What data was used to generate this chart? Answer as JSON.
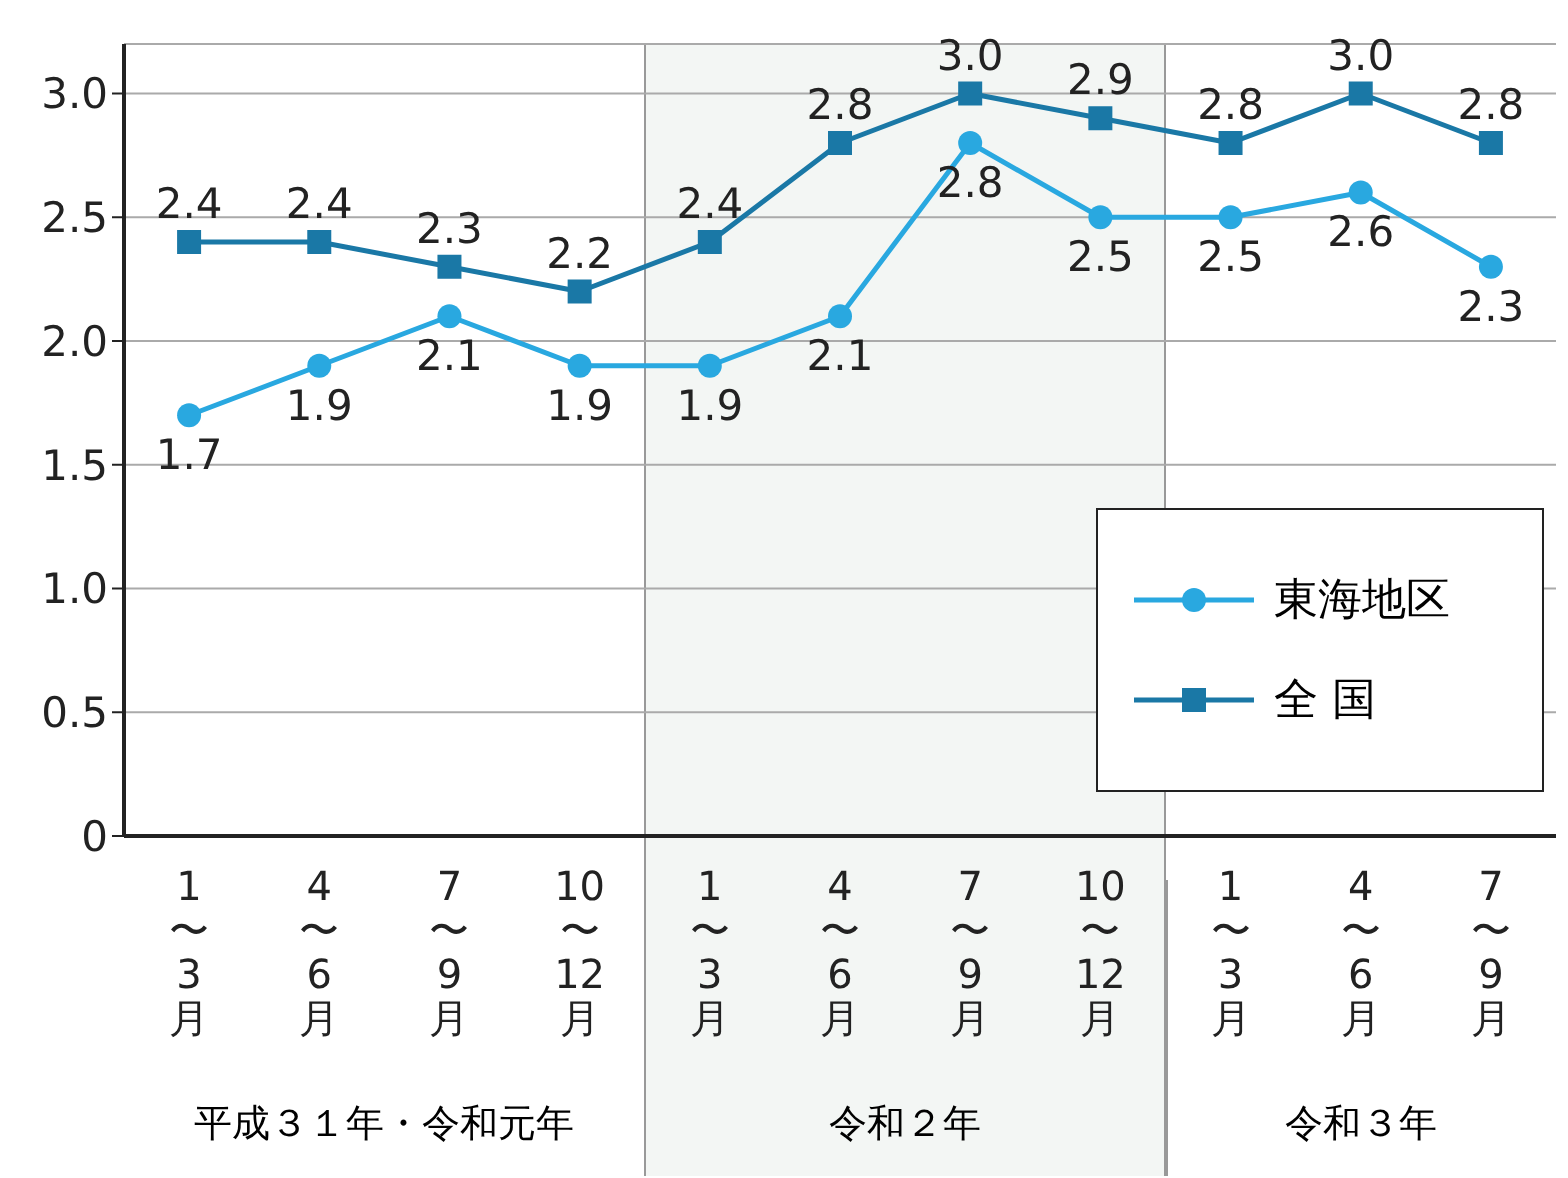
{
  "chart_data": {
    "type": "line",
    "categories": [
      "1〜3月",
      "4〜6月",
      "7〜9月",
      "10〜12月",
      "1〜3月",
      "4〜6月",
      "7〜9月",
      "10〜12月",
      "1〜3月",
      "4〜6月",
      "7〜9月"
    ],
    "series": [
      {
        "name": "東海地区",
        "color": "#29a8e0",
        "marker": "circle",
        "values": [
          1.7,
          1.9,
          2.1,
          1.9,
          1.9,
          2.1,
          2.8,
          2.5,
          2.5,
          2.6,
          2.3
        ],
        "value_labels": [
          "1.7",
          "1.9",
          "2.1",
          "1.9",
          "1.9",
          "2.1",
          "2.8",
          "2.5",
          "2.5",
          "2.6",
          "2.3"
        ]
      },
      {
        "name": "全 国",
        "color": "#1a78a6",
        "marker": "square",
        "values": [
          2.4,
          2.4,
          2.3,
          2.2,
          2.4,
          2.8,
          3.0,
          2.9,
          2.8,
          3.0,
          2.8
        ],
        "value_labels": [
          "2.4",
          "2.4",
          "2.3",
          "2.2",
          "2.4",
          "2.8",
          "3.0",
          "2.9",
          "2.8",
          "3.0",
          "2.8"
        ]
      }
    ],
    "ylim": [
      0,
      3.2
    ],
    "yticks": [
      0,
      {
        "value": 0.5,
        "label": "0.5"
      },
      {
        "value": 1,
        "label": "1.0"
      },
      {
        "value": 1.5,
        "label": "1.5"
      },
      {
        "value": 2,
        "label": "2.0"
      },
      {
        "value": 2.5,
        "label": "2.5"
      },
      {
        "value": 3,
        "label": "3.0"
      }
    ],
    "grid": "y",
    "legend": "bottom right",
    "annotations": [
      "平成３１年・令和元年",
      "令和２年",
      "令和３年"
    ]
  }
}
